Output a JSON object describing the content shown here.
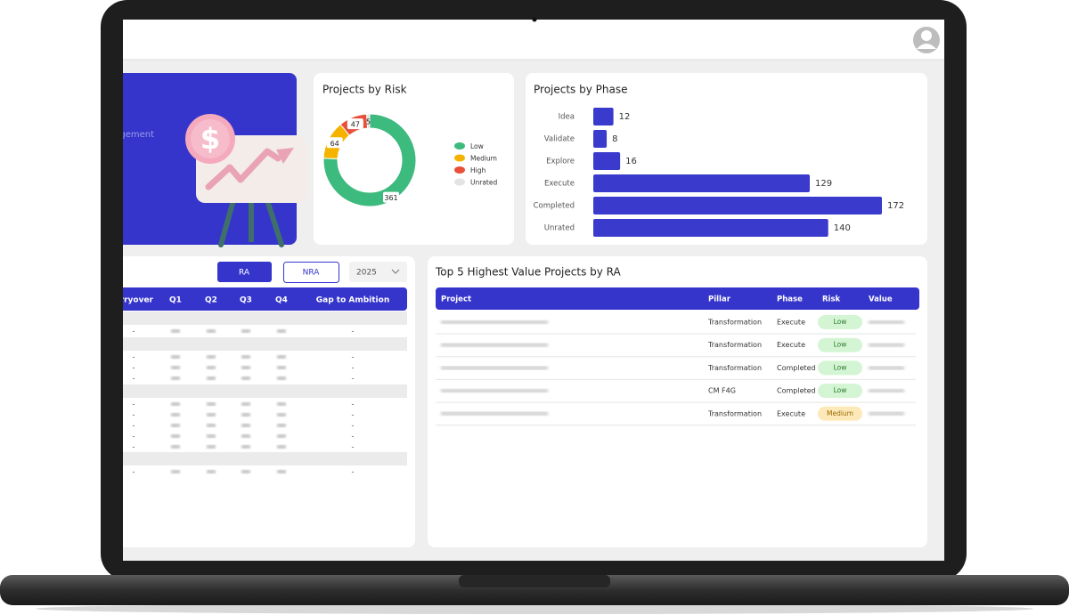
{
  "card": {
    "subtitle": "Management"
  },
  "chart_data": [
    {
      "type": "pie",
      "title": "Projects by Risk",
      "donut": true,
      "legend": "right",
      "categories": [
        "Low",
        "Medium",
        "High",
        "Unrated"
      ],
      "values": [
        361,
        64,
        47,
        5
      ],
      "colors": [
        "#3dba7e",
        "#f5b300",
        "#e8503a",
        "#e3e3e3"
      ]
    },
    {
      "type": "bar",
      "orientation": "horizontal",
      "title": "Projects by Phase",
      "categories": [
        "Idea",
        "Validate",
        "Explore",
        "Execute",
        "Completed",
        "Unrated"
      ],
      "values": [
        12,
        8,
        16,
        129,
        172,
        140
      ],
      "color": "#3a3acc"
    }
  ],
  "filters": {
    "buttons": [
      "RA",
      "NRA"
    ],
    "year": "2025"
  },
  "left_table": {
    "columns": [
      "Carryover",
      "Q1",
      "Q2",
      "Q3",
      "Q4",
      "Gap to Ambition"
    ],
    "rows": [
      [
        "-",
        "-"
      ],
      [
        "-",
        "-"
      ],
      [
        "-",
        "-"
      ],
      [
        "-",
        "-"
      ],
      [
        "-",
        "-"
      ],
      [
        "-",
        "-"
      ],
      [
        "-",
        "-"
      ],
      [
        "-",
        "-"
      ],
      [
        "-",
        "-"
      ],
      [
        "-",
        "-"
      ]
    ]
  },
  "right_table": {
    "title": "Top 5 Highest Value Projects by RA",
    "columns": [
      "Project",
      "Pillar",
      "Phase",
      "Risk",
      "Value"
    ],
    "rows": [
      [
        "Transformation",
        "Execute",
        "Low"
      ],
      [
        "Transformation",
        "Execute",
        "Low"
      ],
      [
        "Transformation",
        "Completed",
        "Low"
      ],
      [
        "CM F4G",
        "Completed",
        "Low"
      ],
      [
        "Transformation",
        "Execute",
        "Medium"
      ]
    ]
  }
}
